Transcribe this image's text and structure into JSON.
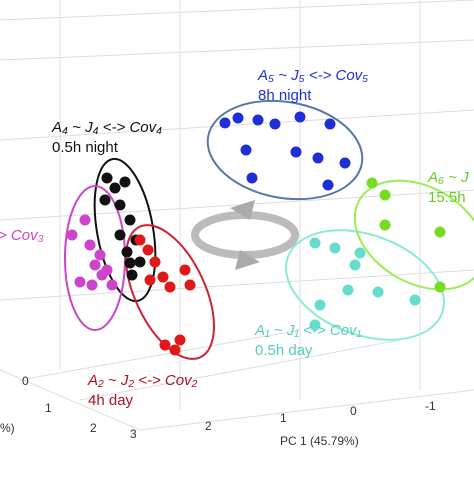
{
  "chart_data": {
    "type": "scatter",
    "xlim": [
      0,
      474
    ],
    "ylim": [
      474,
      0
    ],
    "series": [
      {
        "name": "A₅ ~ J₅ <-> Cov₅",
        "note_line": "8h night",
        "color": "#1f2fd8",
        "x": [
          225,
          238,
          258,
          275,
          300,
          330,
          246,
          296,
          318,
          345,
          252,
          328
        ],
        "values": [
          123,
          118,
          120,
          124,
          117,
          124,
          150,
          152,
          158,
          163,
          178,
          185
        ]
      },
      {
        "name": "A₄ ~ J₄ <-> Cov₄",
        "note_line": "0.5h night",
        "color": "#111111",
        "x": [
          107,
          115,
          125,
          105,
          120,
          130,
          120,
          127,
          130,
          132,
          136,
          140
        ],
        "values": [
          178,
          188,
          182,
          200,
          205,
          220,
          235,
          252,
          263,
          275,
          240,
          262
        ]
      },
      {
        "name": "> Cov₃",
        "color": "#cc44cc",
        "x": [
          72,
          85,
          90,
          95,
          100,
          102,
          107,
          112,
          92,
          80
        ],
        "values": [
          235,
          220,
          245,
          265,
          255,
          275,
          270,
          285,
          285,
          282
        ]
      },
      {
        "name": "A₂ ~ J₂ <-> Cov₂",
        "note_line": "4h day",
        "color": "#e01818",
        "x": [
          140,
          148,
          155,
          163,
          150,
          170,
          185,
          190,
          165,
          175,
          180
        ],
        "values": [
          240,
          250,
          262,
          277,
          280,
          287,
          270,
          285,
          345,
          350,
          340
        ]
      },
      {
        "name": "A₁ ~ J₁ <-> Cov₁",
        "note_line": "0.5h day",
        "color": "#66ddcc",
        "x": [
          315,
          335,
          355,
          360,
          348,
          378,
          320,
          415,
          315
        ],
        "values": [
          243,
          248,
          265,
          253,
          290,
          292,
          305,
          300,
          325
        ]
      },
      {
        "name": "A₆ ~ J",
        "note_line": "15.5h",
        "color": "#77dd22",
        "x": [
          372,
          385,
          385,
          440,
          440
        ],
        "values": [
          183,
          195,
          225,
          232,
          287
        ]
      }
    ],
    "pc1_label": "PC 1 (45.79%)",
    "pc1_ticks": [
      3,
      2,
      1,
      0,
      -1
    ],
    "side_label": "%)",
    "side_ticks": [
      0,
      1,
      2
    ]
  }
}
